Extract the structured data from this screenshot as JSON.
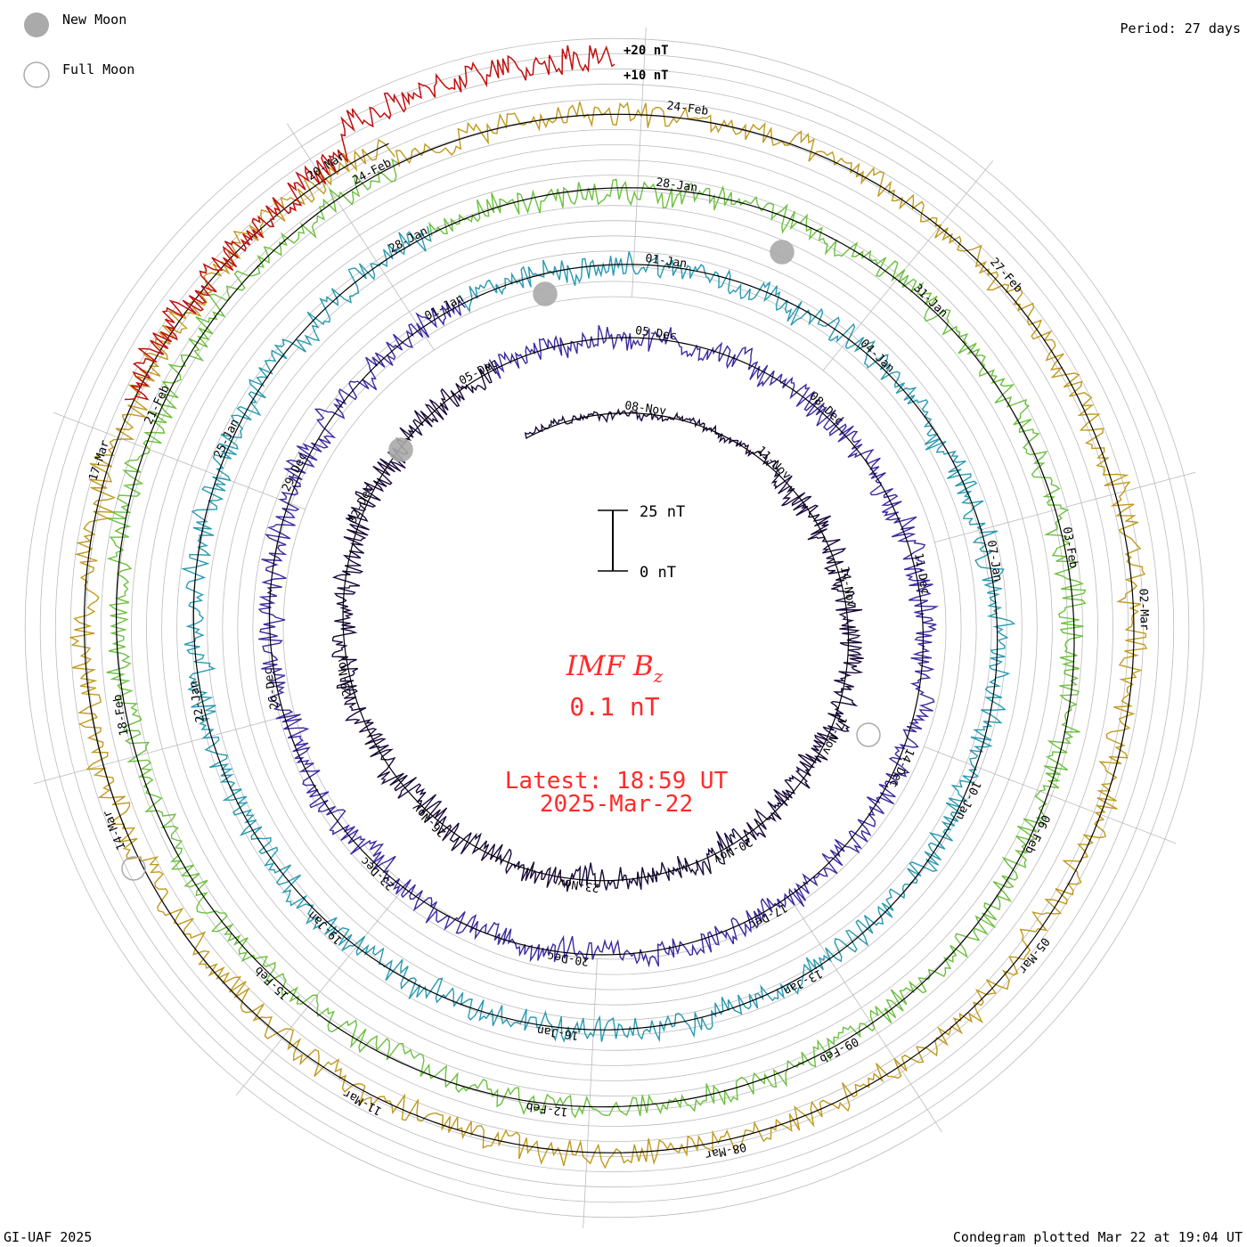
{
  "legend": {
    "new_moon": "New Moon",
    "full_moon": "Full Moon"
  },
  "period_label": "Period: 27 days",
  "scale": {
    "inner_top": "+20 nT",
    "inner_bottom": "+10 nT",
    "bar_top": "25 nT",
    "bar_bottom": "0 nT"
  },
  "center": {
    "quantity": "IMF B",
    "subscript": "z",
    "value": "0.1 nT",
    "latest": "Latest: 18:59 UT",
    "date": "2025-Mar-22"
  },
  "footer": {
    "left": "GI-UAF 2025",
    "right": "Condegram plotted Mar 22 at 19:04 UT"
  },
  "colors": {
    "text_red": "#ff2a2a",
    "grid": "#bbbbbb",
    "moon_fill": "#aaaaaa"
  },
  "chart_data": {
    "type": "line",
    "title": "IMF Bz",
    "period_days": 27,
    "latest_value_nT": 0.1,
    "grid": true,
    "rotations": [
      {
        "color": "#1a0a3a",
        "date_labels": [
          "08-Nov",
          "11-Nov",
          "14-Nov",
          "17-Nov",
          "20-Nov",
          "23-Nov",
          "26-Nov",
          "29-Nov",
          "02-Dec",
          "05-Dec"
        ]
      },
      {
        "color": "#3a2aa0",
        "date_labels": [
          "05-Dec",
          "08-Dec",
          "11-Dec",
          "14-Dec",
          "17-Dec",
          "20-Dec",
          "23-Dec",
          "26-Dec",
          "29-Dec",
          "01-Jan"
        ]
      },
      {
        "color": "#2a9ab0",
        "date_labels": [
          "01-Jan",
          "04-Jan",
          "07-Jan",
          "10-Jan",
          "13-Jan",
          "16-Jan",
          "19-Jan",
          "22-Jan",
          "25-Jan",
          "28-Jan"
        ]
      },
      {
        "color": "#6cc040",
        "date_labels": [
          "28-Jan",
          "31-Jan",
          "03-Feb",
          "06-Feb",
          "09-Feb",
          "12-Feb",
          "15-Feb",
          "18-Feb",
          "21-Feb",
          "24-Feb"
        ]
      },
      {
        "color": "#c09a20",
        "date_labels": [
          "24-Feb",
          "27-Feb",
          "02-Mar",
          "05-Mar",
          "08-Mar",
          "11-Mar",
          "14-Mar",
          "17-Mar",
          "20-Mar"
        ]
      },
      {
        "color": "#c01010",
        "date_labels": []
      }
    ]
  }
}
